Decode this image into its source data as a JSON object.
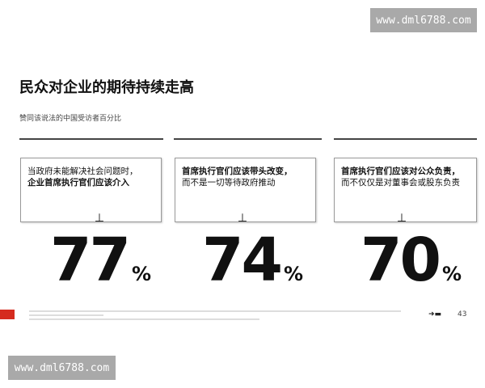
{
  "watermark": "www.dml6788.com",
  "title": "民众对企业的期待持续走高",
  "subtitle": "赞同该说法的中国受访者百分比",
  "cards": [
    {
      "line1": "当政府未能解决社会问题时，",
      "line2": "企业首席执行官们应该介入",
      "bold_line": 2,
      "value": "77",
      "unit": "%"
    },
    {
      "line1": "首席执行官们应该带头改变，",
      "line2": "而不是一切等待政府推动",
      "bold_line": 1,
      "value": "74",
      "unit": "%"
    },
    {
      "line1": "首席执行官们应该对公众负责，",
      "line2": "而不仅仅是对董事会或股东负责",
      "bold_line": 1,
      "value": "70",
      "unit": "%"
    }
  ],
  "tick_symbol": "⊥",
  "footer": {
    "brand_icon": "edelman-logo",
    "page_number": "43",
    "flag_icon": "china-flag",
    "accent": "#d52b1e"
  }
}
